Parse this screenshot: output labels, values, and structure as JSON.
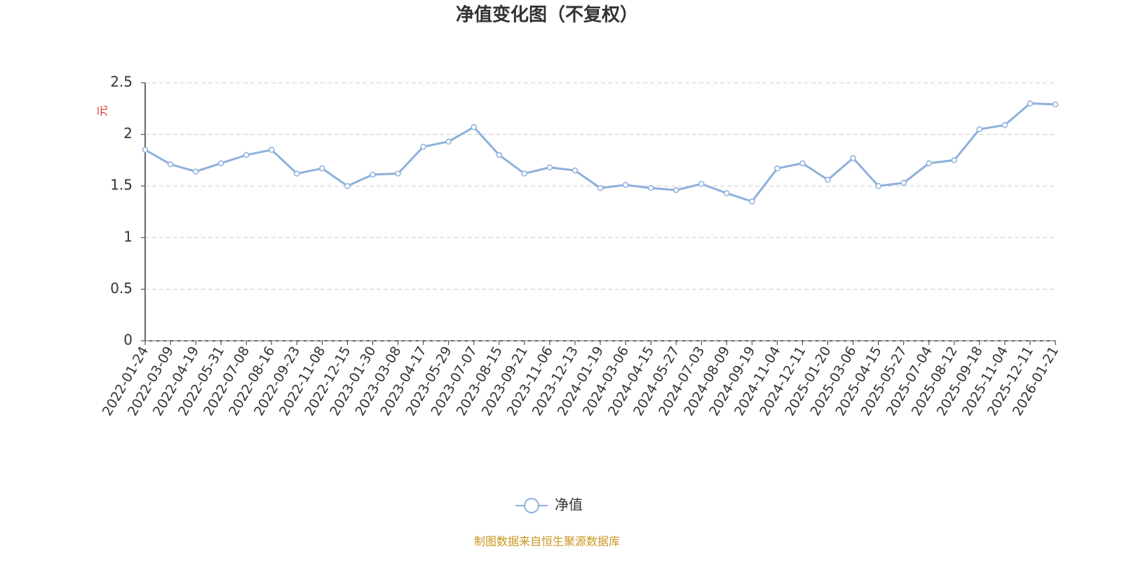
{
  "chart_data": {
    "type": "line",
    "title": "净值变化图（不复权）",
    "y_axis_label": "元",
    "source": "制图数据来自恒生聚源数据库",
    "x": [
      "2022-01-24",
      "2022-03-09",
      "2022-04-19",
      "2022-05-31",
      "2022-07-08",
      "2022-08-16",
      "2022-09-23",
      "2022-11-08",
      "2022-12-15",
      "2023-01-30",
      "2023-03-08",
      "2023-04-17",
      "2023-05-29",
      "2023-07-07",
      "2023-08-15",
      "2023-09-21",
      "2023-11-06",
      "2023-12-13",
      "2024-01-19",
      "2024-03-06",
      "2024-04-15",
      "2024-05-27",
      "2024-07-03",
      "2024-08-09",
      "2024-09-19",
      "2024-11-04",
      "2024-12-11",
      "2025-01-20",
      "2025-03-06",
      "2025-04-15",
      "2025-05-27",
      "2025-07-04",
      "2025-08-12",
      "2025-09-18",
      "2025-11-04",
      "2025-12-11",
      "2026-01-21"
    ],
    "series": [
      {
        "name": "净值",
        "color": "#8eb0dc",
        "values": [
          1.85,
          1.71,
          1.64,
          1.72,
          1.8,
          1.85,
          1.62,
          1.67,
          1.5,
          1.61,
          1.62,
          1.88,
          1.93,
          2.07,
          1.8,
          1.62,
          1.68,
          1.65,
          1.48,
          1.51,
          1.48,
          1.46,
          1.52,
          1.43,
          1.35,
          1.67,
          1.72,
          1.56,
          1.77,
          1.5,
          1.53,
          1.72,
          1.75,
          2.05,
          2.09,
          2.3,
          2.29
        ]
      }
    ],
    "ylim": [
      0,
      2.5
    ],
    "yticks": [
      0,
      0.5,
      1,
      1.5,
      2,
      2.5
    ],
    "grid": true
  }
}
